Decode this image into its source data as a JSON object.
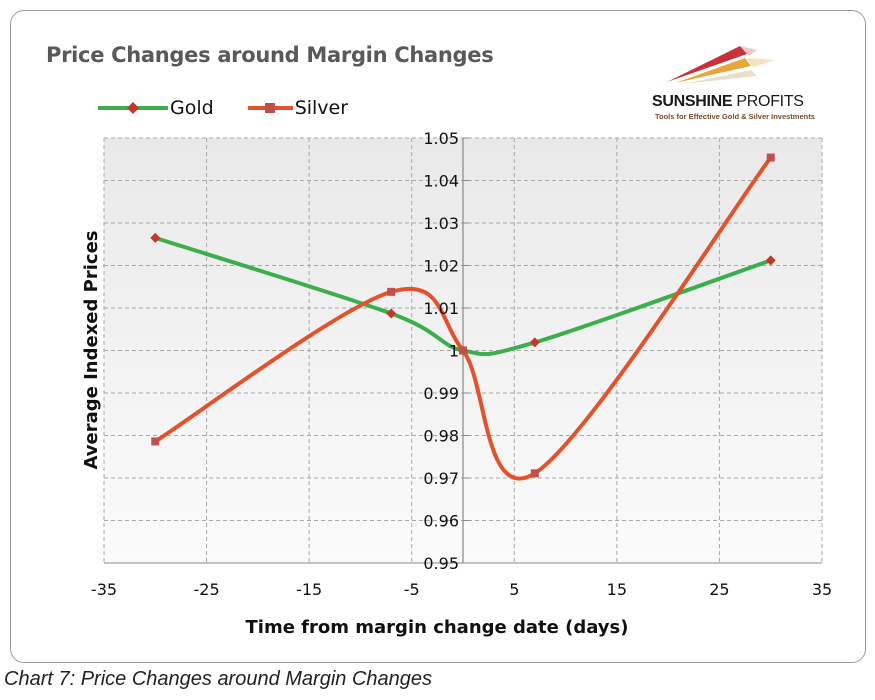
{
  "caption": "Chart 7: Price Changes around Margin Changes",
  "logo": {
    "brand_bold": "SUNSHINE",
    "brand_light": " PROFITS",
    "tagline": "Tools for Effective Gold & Silver Investments"
  },
  "colors": {
    "gold_line": "#3cae4c",
    "gold_marker": "#c0392b",
    "silver_line": "#e4522b",
    "silver_marker": "#c0504d",
    "plot_bg": "#f2f2f2"
  },
  "chart_data": {
    "type": "line",
    "title": "Price Changes around Margin Changes",
    "xlabel": "Time from margin change date (days)",
    "ylabel": "Average Indexed Prices",
    "xlim": [
      -35,
      35
    ],
    "ylim": [
      0.95,
      1.05
    ],
    "xticks": [
      "-35",
      "-25",
      "-15",
      "-5",
      "5",
      "15",
      "25",
      "35"
    ],
    "yticks": [
      "0.95",
      "0.96",
      "0.97",
      "0.98",
      "0.99",
      "1",
      "1.01",
      "1.02",
      "1.03",
      "1.04",
      "1.05"
    ],
    "grid": true,
    "smoothed": true,
    "legend": "top-left",
    "series": [
      {
        "name": "Gold",
        "x": [
          -30,
          -7,
          0,
          7,
          30
        ],
        "y": [
          1.0265,
          1.0087,
          1.0,
          1.0019,
          1.0212
        ]
      },
      {
        "name": "Silver",
        "x": [
          -30,
          -7,
          0,
          7,
          30
        ],
        "y": [
          0.9786,
          1.0138,
          1.0,
          0.9711,
          1.0454
        ]
      }
    ]
  }
}
